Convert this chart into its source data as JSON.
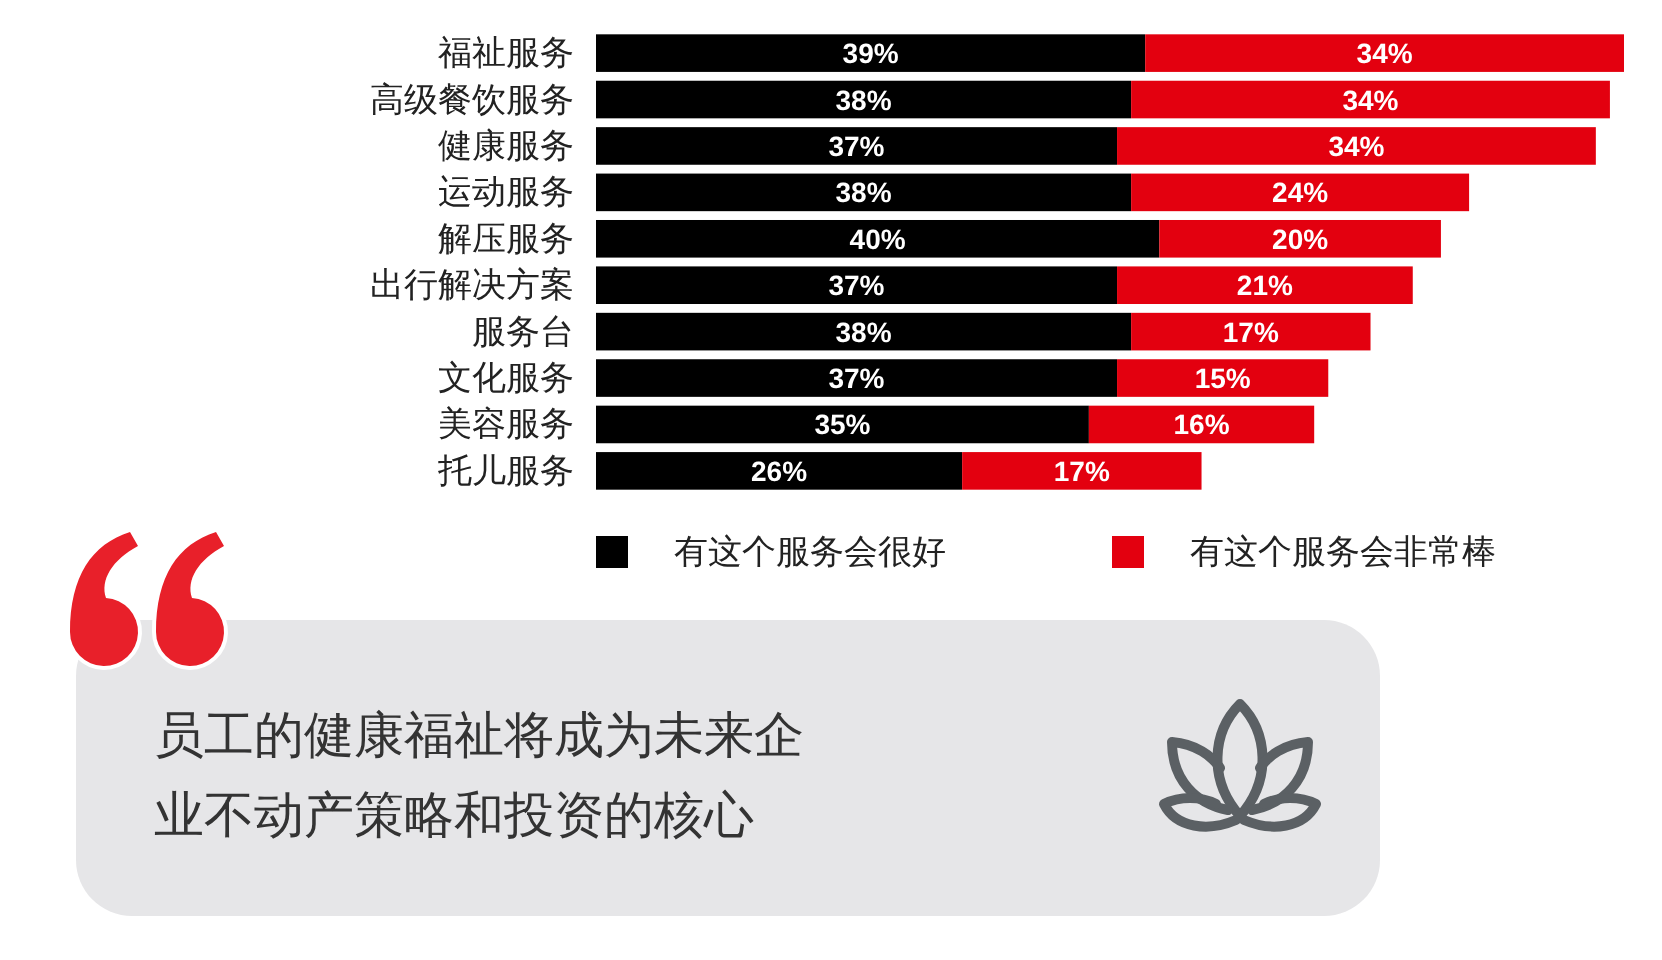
{
  "chart_data": {
    "type": "bar",
    "orientation": "horizontal",
    "stacked": true,
    "categories": [
      "福祉服务",
      "高级餐饮服务",
      "健康服务",
      "运动服务",
      "解压服务",
      "出行解决方案",
      "服务台",
      "文化服务",
      "美容服务",
      "托儿服务"
    ],
    "series": [
      {
        "name": "有这个服务会很好",
        "color": "#000000",
        "values": [
          39,
          38,
          37,
          38,
          40,
          37,
          38,
          37,
          35,
          26
        ],
        "value_labels": [
          "39%",
          "38%",
          "37%",
          "38%",
          "40%",
          "37%",
          "38%",
          "37%",
          "35%",
          "26%"
        ]
      },
      {
        "name": "有这个服务会非常棒",
        "color": "#e3000f",
        "values": [
          34,
          34,
          34,
          24,
          20,
          21,
          17,
          15,
          16,
          17
        ],
        "value_labels": [
          "34%",
          "34%",
          "34%",
          "24%",
          "20%",
          "21%",
          "17%",
          "15%",
          "16%",
          "17%"
        ]
      }
    ],
    "legend": "bottom",
    "tick_labels": "y",
    "annotations": [
      "员工的健康福祉将成为未来企业不动产策略和投资的核心"
    ]
  }
}
